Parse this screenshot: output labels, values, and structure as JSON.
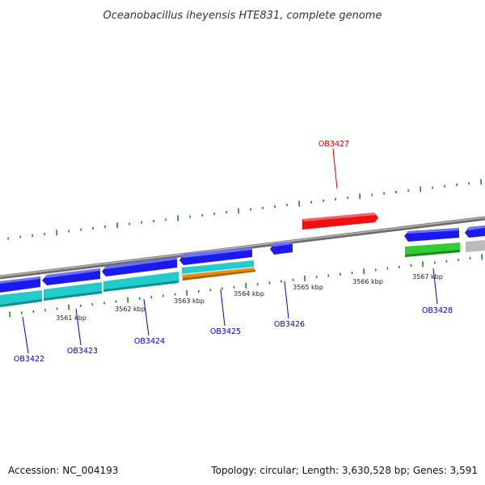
{
  "title": "Oceanobacillus iheyensis HTE831, complete genome",
  "footer": {
    "accession": "Accession: NC_004193",
    "summary": "Topology: circular; Length: 3,630,528 bp; Genes: 3,591"
  },
  "colors": {
    "backbone": "#8a8a8a",
    "forward_label": "#cc0000",
    "reverse_label": "#0000bb",
    "tick": "#1a8a1a",
    "gene_blue": "#1a1aee",
    "gene_cyan": "#22cccc",
    "gene_orange": "#f08c00",
    "gene_green": "#33cc33",
    "gene_red": "#ee1111",
    "gene_gray": "#bbbbbb"
  },
  "kbp_ticks": [
    {
      "label": "3561 kbp"
    },
    {
      "label": "3562 kbp"
    },
    {
      "label": "3563 kbp"
    },
    {
      "label": "3564 kbp"
    },
    {
      "label": "3565 kbp"
    },
    {
      "label": "3566 kbp"
    },
    {
      "label": "3567 kbp"
    }
  ],
  "gene_labels": [
    {
      "name": "OB3427",
      "strand": "forward"
    },
    {
      "name": "OB3422",
      "strand": "reverse"
    },
    {
      "name": "OB3423",
      "strand": "reverse"
    },
    {
      "name": "OB3424",
      "strand": "reverse"
    },
    {
      "name": "OB3425",
      "strand": "reverse"
    },
    {
      "name": "OB3426",
      "strand": "reverse"
    },
    {
      "name": "OB3428",
      "strand": "reverse"
    }
  ]
}
